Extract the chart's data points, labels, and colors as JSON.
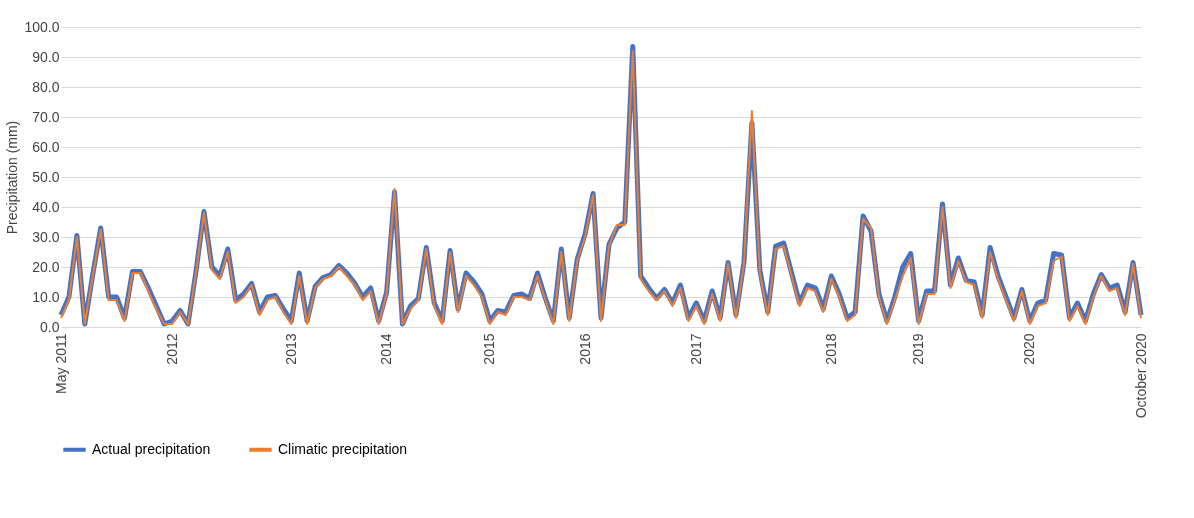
{
  "chart_data": {
    "type": "line",
    "ylabel": "Precipitation (mm)",
    "categories": [
      "May 2011",
      null,
      null,
      null,
      null,
      null,
      null,
      null,
      null,
      null,
      null,
      null,
      null,
      null,
      "2012",
      null,
      null,
      null,
      null,
      null,
      null,
      null,
      null,
      null,
      null,
      null,
      null,
      null,
      null,
      "2013",
      null,
      null,
      null,
      null,
      null,
      null,
      null,
      null,
      null,
      null,
      null,
      "2014",
      null,
      null,
      null,
      null,
      null,
      null,
      null,
      null,
      null,
      null,
      null,
      null,
      "2015",
      null,
      null,
      null,
      null,
      null,
      null,
      null,
      null,
      null,
      null,
      null,
      "2016",
      null,
      null,
      null,
      null,
      null,
      null,
      null,
      null,
      null,
      null,
      null,
      null,
      null,
      "2017",
      null,
      null,
      null,
      null,
      null,
      null,
      null,
      null,
      null,
      null,
      null,
      null,
      null,
      null,
      null,
      null,
      "2018",
      null,
      null,
      null,
      null,
      null,
      null,
      null,
      null,
      null,
      null,
      "2019",
      null,
      null,
      null,
      null,
      null,
      null,
      null,
      null,
      null,
      null,
      null,
      null,
      null,
      "2020",
      null,
      null,
      null,
      null,
      null,
      null,
      null,
      null,
      null,
      null,
      null,
      null,
      null,
      "October 2020"
    ],
    "series": [
      {
        "name": "Actual precipitation",
        "color": "#4472c4",
        "values": [
          4,
          10,
          30.5,
          1,
          17.5,
          33,
          10,
          10,
          3,
          18.5,
          18.5,
          13,
          7,
          1,
          2,
          5.5,
          1,
          18.5,
          38.5,
          20,
          17,
          26,
          9,
          11,
          14.5,
          5,
          10,
          10.5,
          6,
          2,
          18,
          2,
          13.5,
          16.5,
          17.5,
          20.5,
          18,
          14.5,
          10,
          13,
          2,
          11.5,
          45,
          1,
          7,
          9.5,
          26.5,
          8,
          2,
          25.5,
          6,
          18,
          15,
          11,
          2,
          5.5,
          5,
          10.5,
          11,
          9.5,
          18,
          9.5,
          2,
          26,
          3,
          22.5,
          31,
          44.5,
          3,
          27.5,
          33,
          35,
          93.5,
          17,
          13,
          9.5,
          12.5,
          8,
          14,
          3,
          8,
          2,
          12,
          3,
          21.5,
          4,
          21.5,
          68,
          19,
          5,
          27,
          28,
          18,
          8,
          14,
          13,
          6,
          17,
          11,
          3,
          5,
          37,
          32,
          11,
          2,
          10,
          20,
          24.5,
          2,
          12,
          12,
          41,
          14,
          23,
          15.5,
          15,
          4,
          26.5,
          17,
          10,
          3,
          12.5,
          2,
          8,
          9,
          24.5,
          24,
          3,
          8,
          2,
          11,
          17.5,
          13,
          14,
          5,
          21.5,
          4
        ]
      },
      {
        "name": "Climatic precipitation",
        "color": "#ed7d31",
        "values": [
          3,
          9,
          30,
          1,
          17,
          32.5,
          9,
          9,
          2,
          18,
          18,
          12,
          6,
          1,
          1,
          5,
          1,
          18,
          38,
          19,
          16,
          25,
          8,
          10,
          14,
          4,
          9,
          10,
          5,
          1,
          17,
          1,
          13,
          16,
          17,
          20,
          17,
          14,
          9,
          12,
          1,
          11,
          46,
          1,
          6,
          9,
          26,
          7,
          1,
          25,
          5,
          17,
          14,
          10,
          1,
          5,
          4,
          10,
          10,
          9,
          17,
          9,
          1,
          25,
          2,
          22,
          30,
          44,
          2,
          27,
          34,
          34,
          92,
          16,
          12,
          9,
          12,
          7,
          13,
          2,
          7,
          1,
          11,
          2,
          21,
          3,
          21,
          72,
          18,
          4,
          26,
          27,
          17,
          7,
          13,
          12,
          5,
          16,
          10,
          2,
          4,
          36,
          33,
          10,
          1,
          9,
          17,
          23,
          1,
          11,
          11,
          40,
          13,
          22,
          15,
          14,
          3,
          25,
          16,
          9,
          2,
          12,
          1,
          7,
          8,
          22,
          23.5,
          2,
          7,
          1,
          10,
          17,
          12,
          13,
          4,
          21,
          3
        ]
      }
    ],
    "ylim": [
      0,
      100
    ],
    "yticks": [
      {
        "value": 0,
        "label": "0.0"
      },
      {
        "value": 10,
        "label": "10.0"
      },
      {
        "value": 20,
        "label": "20.0"
      },
      {
        "value": 30,
        "label": "30.0"
      },
      {
        "value": 40,
        "label": "40.0"
      },
      {
        "value": 50,
        "label": "50.0"
      },
      {
        "value": 60,
        "label": "60.0"
      },
      {
        "value": 70,
        "label": "70.0"
      },
      {
        "value": 80,
        "label": "80.0"
      },
      {
        "value": 90,
        "label": "90.0"
      },
      {
        "value": 100,
        "label": "100.0"
      }
    ],
    "grid": "y",
    "legend": "bottom",
    "marker": "none",
    "line_style": "solid"
  }
}
